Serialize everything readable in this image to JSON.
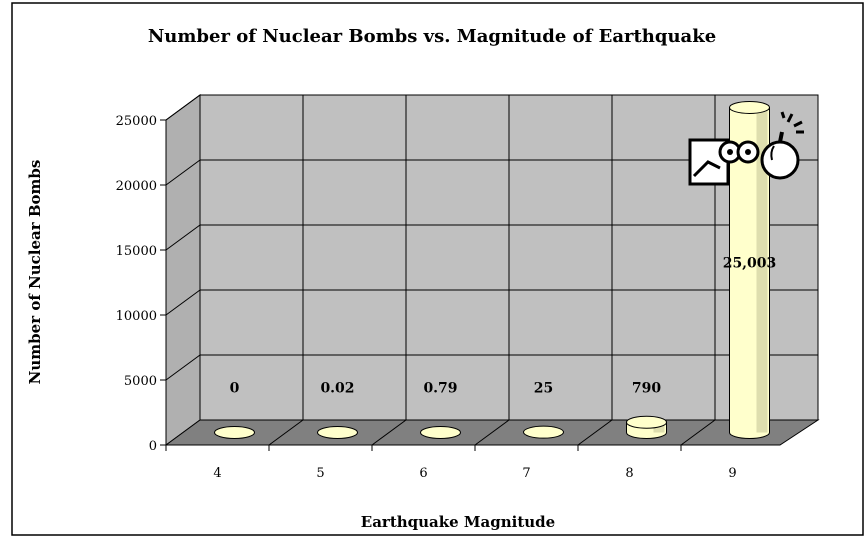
{
  "chart_data": {
    "type": "bar",
    "title": "Number of Nuclear Bombs vs. Magnitude of Earthquake",
    "xlabel": "Earthquake Magnitude",
    "ylabel": "Number of Nuclear Bombs",
    "categories": [
      "4",
      "5",
      "6",
      "7",
      "8",
      "9"
    ],
    "values": [
      0,
      0.02,
      0.79,
      25,
      790,
      25003
    ],
    "data_labels": [
      "0",
      "0.02",
      "0.79",
      "25",
      "790",
      "25,003"
    ],
    "y_ticks": [
      "0",
      "5000",
      "10000",
      "15000",
      "20000",
      "25000"
    ],
    "ylim": [
      0,
      25000
    ],
    "grid": true,
    "legend": "none",
    "bar_shape": "cylinder",
    "colors": {
      "wall": "#c0c0c0",
      "floor": "#808080",
      "grid": "#000000",
      "bar": "#ffffcc",
      "bar_shadow": "#c8c89a",
      "border": "#000000"
    },
    "icons": [
      "computer-icon",
      "bomb-icon"
    ]
  }
}
